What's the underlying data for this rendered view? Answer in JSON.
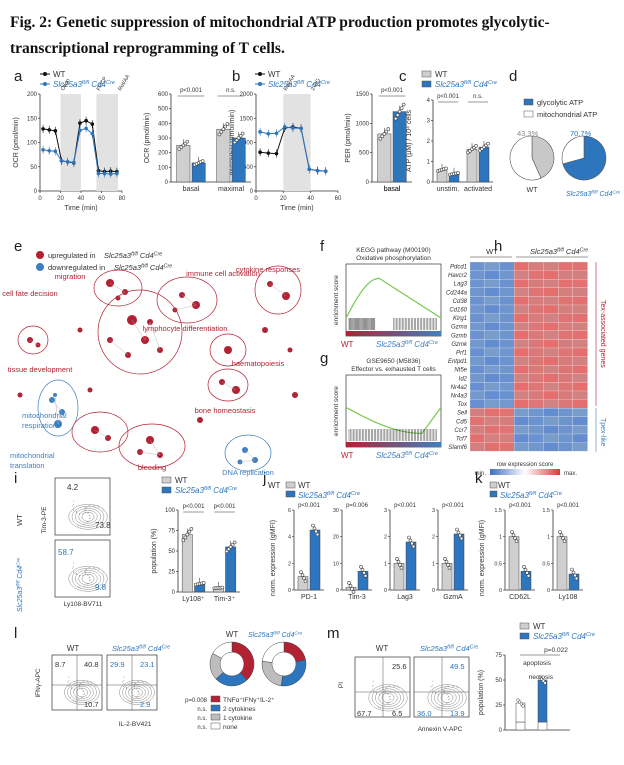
{
  "figure": {
    "title": "Fig. 2: Genetic suppression of mitochondrial ATP production promotes glycolytic-transcriptional reprogramming of T cells.",
    "panel_letters": [
      "a",
      "b",
      "c",
      "d",
      "e",
      "f",
      "g",
      "h",
      "i",
      "j",
      "k",
      "l",
      "m"
    ]
  },
  "colors": {
    "wt": "#cfcfcf",
    "ko": "#2d75bd",
    "up": "#b22233",
    "down": "#3f7fc0",
    "green": "#79c84f"
  },
  "legend": {
    "wt": "WT",
    "ko": "Slc25a3fl/fl Cd4Cre",
    "ko_main": "Slc25a3",
    "ko_sup1": "fl/fl",
    "ko_mid": " Cd4",
    "ko_sup2": "Cre"
  },
  "chart_data": [
    {
      "panel": "a",
      "type": "line",
      "ylabel": "OCR (pmol/min)",
      "xlabel": "Time (min)",
      "ylim": [
        0,
        200
      ],
      "yticks": [
        0,
        50,
        100,
        150,
        200
      ],
      "xticks": [
        0,
        20,
        40,
        60,
        80
      ],
      "injections": [
        "Oligo",
        "FCCP",
        "Rot/AA"
      ],
      "series": [
        {
          "name": "WT",
          "x": [
            3,
            9,
            15,
            21,
            27,
            33,
            39,
            45,
            51,
            57,
            63,
            69,
            75
          ],
          "values": [
            128,
            126,
            124,
            62,
            60,
            58,
            140,
            145,
            138,
            42,
            40,
            41,
            40
          ]
        },
        {
          "name": "Slc25a3fl/fl Cd4Cre",
          "x": [
            3,
            9,
            15,
            21,
            27,
            33,
            39,
            45,
            51,
            57,
            63,
            69,
            75
          ],
          "values": [
            85,
            83,
            82,
            62,
            60,
            59,
            125,
            129,
            118,
            36,
            36,
            35,
            36
          ]
        }
      ]
    },
    {
      "panel": "a",
      "type": "bar",
      "ylabel": "OCR (pmol/min)",
      "categories": [
        "basal",
        "maximal"
      ],
      "ylim": [
        0,
        600
      ],
      "yticks": [
        0,
        100,
        200,
        300,
        400,
        500,
        600
      ],
      "series": [
        {
          "name": "WT",
          "values": [
            250,
            360
          ]
        },
        {
          "name": "Slc25a3fl/fl Cd4Cre",
          "values": [
            130,
            300
          ]
        }
      ],
      "pvalues": [
        "p<0.001",
        "n.s."
      ]
    },
    {
      "panel": "b",
      "type": "line",
      "ylabel": "glycoPER (pmol/min)",
      "xlabel": "Time (min)",
      "ylim": [
        0,
        2000
      ],
      "yticks": [
        0,
        500,
        1000,
        1500,
        2000
      ],
      "xticks": [
        0,
        20,
        40,
        60
      ],
      "injections": [
        "Rot/AA",
        "2-DG"
      ],
      "series": [
        {
          "name": "WT",
          "x": [
            3,
            9,
            15,
            21,
            27,
            33,
            39,
            45,
            51
          ],
          "values": [
            800,
            780,
            770,
            1300,
            1320,
            1290,
            450,
            420,
            410
          ]
        },
        {
          "name": "Slc25a3fl/fl Cd4Cre",
          "x": [
            3,
            9,
            15,
            21,
            27,
            33,
            39,
            45,
            51
          ],
          "values": [
            1220,
            1180,
            1190,
            1320,
            1300,
            1290,
            450,
            420,
            410
          ]
        }
      ]
    },
    {
      "panel": "b",
      "type": "bar",
      "ylabel": "PER (pmol/min)",
      "categories": [
        "basal"
      ],
      "ylim": [
        0,
        1500
      ],
      "yticks": [
        0,
        500,
        1000,
        1500
      ],
      "series": [
        {
          "name": "WT",
          "values": [
            820
          ]
        },
        {
          "name": "Slc25a3fl/fl Cd4Cre",
          "values": [
            1200
          ]
        }
      ],
      "pvalues": [
        "p<0.001"
      ]
    },
    {
      "panel": "c",
      "type": "bar",
      "ylabel": "ATP (µM) / 10⁴ cells",
      "categories": [
        "unstim.",
        "activated"
      ],
      "ylim": [
        0,
        4
      ],
      "yticks": [
        0,
        1,
        2,
        3,
        4
      ],
      "series": [
        {
          "name": "WT",
          "values": [
            0.6,
            1.6
          ]
        },
        {
          "name": "Slc25a3fl/fl Cd4Cre",
          "values": [
            0.4,
            1.7
          ]
        }
      ],
      "pvalues": [
        "p<0.001",
        "n.s."
      ]
    },
    {
      "panel": "d",
      "type": "pie",
      "legend": [
        "glycolytic ATP",
        "mitochondrial ATP"
      ],
      "series": [
        {
          "name": "WT",
          "values": [
            43.3,
            56.7
          ],
          "label": "43.3%"
        },
        {
          "name": "Slc25a3fl/fl Cd4Cre",
          "values": [
            70.7,
            29.3
          ],
          "label": "70.7%"
        }
      ]
    },
    {
      "panel": "i",
      "type": "bar",
      "ylabel": "population (%)",
      "categories": [
        "Ly108⁺",
        "Tim-3⁺"
      ],
      "ylim": [
        0,
        100
      ],
      "yticks": [
        0,
        25,
        50,
        75,
        100
      ],
      "series": [
        {
          "name": "WT",
          "values": [
            70,
            5
          ]
        },
        {
          "name": "Slc25a3fl/fl Cd4Cre",
          "values": [
            10,
            55
          ]
        }
      ],
      "pvalues": [
        "p<0.001",
        "p<0.001"
      ]
    },
    {
      "panel": "j",
      "type": "bar",
      "ylabel": "norm. expression (gMFI)",
      "subplots": [
        {
          "label": "PD-1",
          "yticks": [
            0,
            2,
            4,
            6
          ],
          "ylim": [
            0,
            6
          ],
          "values": [
            1,
            4.5
          ],
          "p": "p<0.001"
        },
        {
          "label": "Tim-3",
          "yticks": [
            0,
            10,
            20,
            30
          ],
          "ylim": [
            0,
            30
          ],
          "values": [
            1,
            7
          ],
          "p": "p=0.006"
        },
        {
          "label": "Lag3",
          "yticks": [
            0,
            1,
            2,
            3
          ],
          "ylim": [
            0,
            3
          ],
          "values": [
            1,
            1.8
          ],
          "p": "p<0.001"
        },
        {
          "label": "GzmA",
          "yticks": [
            0,
            1,
            2,
            3
          ],
          "ylim": [
            0,
            3
          ],
          "values": [
            1,
            2.1
          ],
          "p": "p<0.001"
        }
      ]
    },
    {
      "panel": "k",
      "type": "bar",
      "ylabel": "norm. expression (gMFI)",
      "subplots": [
        {
          "label": "CD62L",
          "yticks": [
            0,
            0.5,
            1,
            1.5
          ],
          "ylim": [
            0,
            1.5
          ],
          "values": [
            1,
            0.35
          ],
          "p": "p<0.001"
        },
        {
          "label": "Ly108",
          "yticks": [
            0,
            0.5,
            1,
            1.5
          ],
          "ylim": [
            0,
            1.5
          ],
          "values": [
            1,
            0.3
          ],
          "p": "p<0.001"
        }
      ]
    },
    {
      "panel": "l",
      "type": "pie",
      "legend": [
        "TNFα⁺IFNγ⁺IL-2⁺",
        "2 cytokines",
        "1 cytokine",
        "none"
      ],
      "legend_p": [
        "p=0.008",
        "n.s.",
        "n.s.",
        "n.s."
      ],
      "series": [
        {
          "name": "WT",
          "values": [
            38,
            25,
            20,
            17
          ]
        },
        {
          "name": "Slc25a3fl/fl Cd4Cre",
          "values": [
            22,
            30,
            25,
            23
          ]
        }
      ]
    },
    {
      "panel": "m",
      "type": "bar",
      "ylabel": "population (%)",
      "ylim": [
        0,
        75
      ],
      "yticks": [
        0,
        25,
        50,
        75
      ],
      "categories": [
        "WT",
        "Slc25a3fl/fl Cd4Cre"
      ],
      "series": [
        {
          "name": "apoptosis",
          "values": [
            8,
            8
          ]
        },
        {
          "name": "necrosis",
          "values": [
            27,
            50
          ]
        }
      ],
      "pvalues": [
        "p=0.022"
      ],
      "annotations": [
        "apoptosis",
        "necrosis"
      ]
    },
    {
      "panel": "f",
      "type": "line",
      "title": "KEGG pathway (M00190)",
      "subtitle": "Oxidative phosphorylation",
      "ylabel": "enrichment score"
    },
    {
      "panel": "g",
      "type": "line",
      "title": "GSE9650 (M5836)",
      "subtitle": "Effector vs. exhausted T cells",
      "ylabel": "enrichment score"
    },
    {
      "panel": "h",
      "type": "heatmap",
      "groups": [
        "WT",
        "Slc25a3fl/fl Cd4Cre"
      ],
      "genes": [
        "Pdcd1",
        "Havcr2",
        "Lag3",
        "Cd244a",
        "Cd38",
        "Cd160",
        "Klrg1",
        "Gzma",
        "Gzmb",
        "Gzmk",
        "Prf1",
        "Entpd1",
        "Nt5e",
        "Id2",
        "Nr4a2",
        "Nr4a3",
        "Tox",
        "Sell",
        "Cd5",
        "Ccr7",
        "Tcf7",
        "Slamf6"
      ],
      "side_labels": [
        "Tex-associated genes",
        "Tpex-like"
      ],
      "scale": "row expression score",
      "scale_min": "min.",
      "scale_max": "max."
    }
  ],
  "panel_e": {
    "legend_up": "upregulated in Slc25a3fl/fl Cd4Cre",
    "legend_down": "downregulated in Slc25a3fl/fl Cd4Cre",
    "red_terms": [
      "migration",
      "immune cell activation",
      "cytokine responses",
      "cell fate decision",
      "lymphocyte differentiation",
      "haematopoiesis",
      "tissue development",
      "bone homeostasis",
      "bleeding"
    ],
    "blue_terms": [
      "mitochondrial respiration",
      "mitochondrial translation",
      "DNA replication"
    ]
  },
  "flow": {
    "i": {
      "yaxis": "Tim-3-PE",
      "xaxis": "Ly108-BV711",
      "wt": [
        "4.2",
        "73.8"
      ],
      "ko": [
        "58.7",
        "9.8"
      ]
    },
    "l": {
      "yaxis": "IFNγ-APC",
      "xaxis": "IL-2-BV421",
      "wt": [
        "8.7",
        "40.8",
        "10.7"
      ],
      "ko": [
        "29.9",
        "23.1",
        "2.9"
      ]
    },
    "m": {
      "yaxis": "PI",
      "xaxis": "Annexin V-APC",
      "wt": [
        "25.6",
        "67.7",
        "6.5"
      ],
      "ko": [
        "49.5",
        "36.0",
        "13.9"
      ]
    }
  }
}
